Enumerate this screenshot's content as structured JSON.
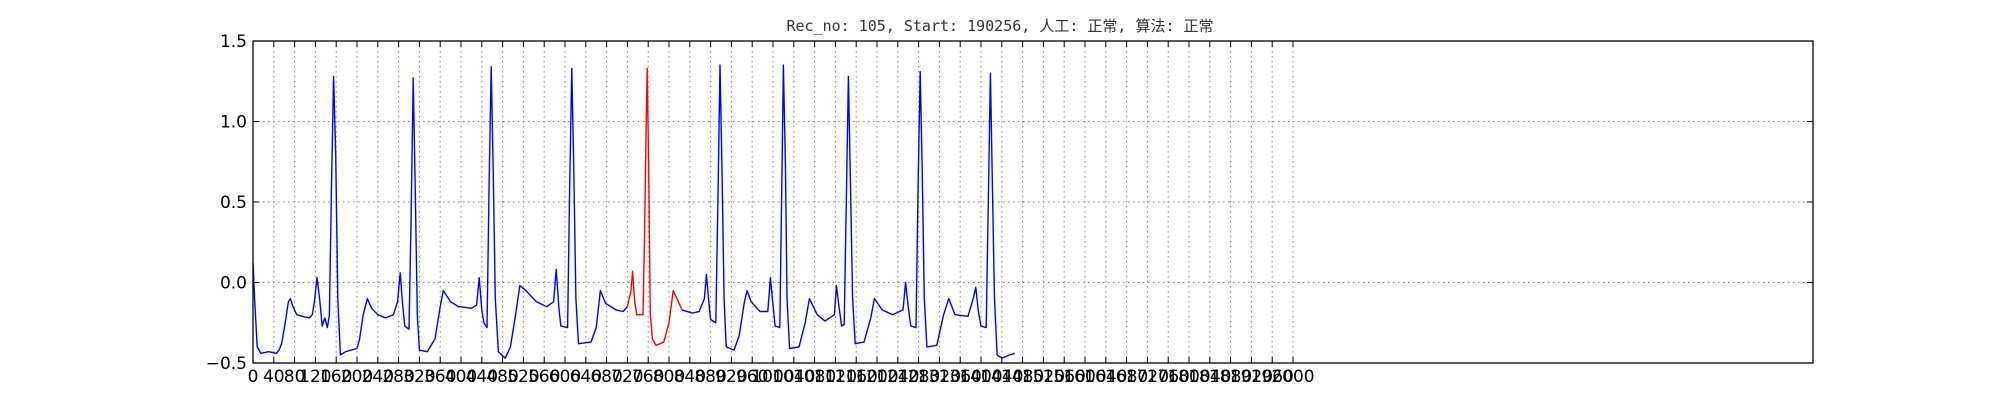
{
  "chart_data": {
    "type": "line",
    "title": "Rec_no: 105, Start: 190256, 人工: 正常, 算法: 正常",
    "xlabel": "",
    "ylabel": "",
    "xlim": [
      0,
      3000
    ],
    "ylim": [
      -0.5,
      1.5
    ],
    "yticks": [
      -0.5,
      0.0,
      0.5,
      1.0,
      1.5
    ],
    "ytick_labels": [
      "−0.5",
      "0.0",
      "0.5",
      "1.0",
      "1.5"
    ],
    "xtick_step": 40,
    "xtick_max": 2000,
    "grid": true,
    "colors": {
      "normal": "#0000ff",
      "highlight": "#ff0000",
      "axis": "#000000",
      "grid": "#888888"
    },
    "series": [
      {
        "color": "#0000ff",
        "values": [
          [
            0,
            0.12
          ],
          [
            3,
            -0.1
          ],
          [
            8,
            -0.4
          ],
          [
            15,
            -0.44
          ],
          [
            30,
            -0.43
          ],
          [
            45,
            -0.44
          ],
          [
            50,
            -0.42
          ],
          [
            55,
            -0.38
          ],
          [
            62,
            -0.25
          ],
          [
            68,
            -0.12
          ],
          [
            72,
            -0.1
          ],
          [
            77,
            -0.15
          ],
          [
            84,
            -0.2
          ],
          [
            95,
            -0.21
          ],
          [
            108,
            -0.22
          ],
          [
            114,
            -0.2
          ],
          [
            118,
            -0.12
          ],
          [
            123,
            0.03
          ],
          [
            128,
            -0.1
          ],
          [
            133,
            -0.27
          ],
          [
            138,
            -0.22
          ],
          [
            143,
            -0.28
          ],
          [
            147,
            -0.2
          ],
          [
            151,
            0.6
          ],
          [
            155,
            1.28
          ],
          [
            159,
            0.8
          ],
          [
            163,
            -0.1
          ],
          [
            168,
            -0.45
          ],
          [
            178,
            -0.43
          ],
          [
            200,
            -0.41
          ],
          [
            205,
            -0.35
          ],
          [
            212,
            -0.2
          ],
          [
            220,
            -0.1
          ],
          [
            228,
            -0.16
          ],
          [
            240,
            -0.2
          ],
          [
            255,
            -0.22
          ],
          [
            270,
            -0.2
          ],
          [
            278,
            -0.12
          ],
          [
            283,
            0.06
          ],
          [
            288,
            -0.15
          ],
          [
            292,
            -0.27
          ],
          [
            300,
            -0.29
          ],
          [
            304,
            0.4
          ],
          [
            308,
            1.27
          ],
          [
            312,
            0.6
          ],
          [
            316,
            -0.2
          ],
          [
            320,
            -0.42
          ],
          [
            335,
            -0.43
          ],
          [
            350,
            -0.35
          ],
          [
            360,
            -0.15
          ],
          [
            366,
            -0.05
          ],
          [
            380,
            -0.12
          ],
          [
            395,
            -0.15
          ],
          [
            420,
            -0.16
          ],
          [
            430,
            -0.14
          ],
          [
            435,
            0.03
          ],
          [
            440,
            -0.17
          ],
          [
            444,
            -0.25
          ],
          [
            450,
            -0.28
          ],
          [
            454,
            0.6
          ],
          [
            458,
            1.34
          ],
          [
            462,
            0.7
          ],
          [
            466,
            -0.1
          ],
          [
            472,
            -0.43
          ],
          [
            485,
            -0.47
          ],
          [
            495,
            -0.4
          ],
          [
            505,
            -0.2
          ],
          [
            513,
            -0.02
          ],
          [
            525,
            -0.05
          ],
          [
            545,
            -0.12
          ],
          [
            565,
            -0.15
          ],
          [
            578,
            -0.12
          ],
          [
            583,
            0.08
          ],
          [
            588,
            -0.15
          ],
          [
            592,
            -0.27
          ],
          [
            605,
            -0.28
          ],
          [
            609,
            0.6
          ],
          [
            613,
            1.33
          ],
          [
            617,
            0.7
          ],
          [
            621,
            -0.1
          ],
          [
            626,
            -0.38
          ],
          [
            650,
            -0.37
          ],
          [
            660,
            -0.28
          ],
          [
            668,
            -0.05
          ],
          [
            678,
            -0.13
          ],
          [
            698,
            -0.17
          ],
          [
            712,
            -0.18
          ],
          [
            720,
            -0.15
          ]
        ]
      },
      {
        "color": "#ff0000",
        "values": [
          [
            720,
            -0.15
          ],
          [
            727,
            -0.05
          ],
          [
            730,
            0.07
          ],
          [
            734,
            -0.12
          ],
          [
            738,
            -0.2
          ],
          [
            750,
            -0.2
          ],
          [
            753,
            0.3
          ],
          [
            756,
            0.95
          ],
          [
            758,
            1.33
          ],
          [
            761,
            0.7
          ],
          [
            764,
            -0.2
          ],
          [
            768,
            -0.35
          ],
          [
            775,
            -0.39
          ],
          [
            790,
            -0.37
          ],
          [
            800,
            -0.25
          ],
          [
            808,
            -0.05
          ],
          [
            818,
            -0.12
          ],
          [
            825,
            -0.17
          ]
        ]
      },
      {
        "color": "#0000ff",
        "values": [
          [
            825,
            -0.17
          ],
          [
            845,
            -0.19
          ],
          [
            858,
            -0.18
          ],
          [
            868,
            -0.1
          ],
          [
            872,
            0.05
          ],
          [
            876,
            -0.1
          ],
          [
            880,
            -0.23
          ],
          [
            890,
            -0.25
          ],
          [
            894,
            0.5
          ],
          [
            898,
            1.35
          ],
          [
            902,
            0.7
          ],
          [
            906,
            -0.1
          ],
          [
            910,
            -0.4
          ],
          [
            925,
            -0.42
          ],
          [
            935,
            -0.33
          ],
          [
            945,
            -0.12
          ],
          [
            950,
            -0.05
          ],
          [
            958,
            -0.12
          ],
          [
            975,
            -0.18
          ],
          [
            990,
            -0.18
          ],
          [
            995,
            0.03
          ],
          [
            1000,
            -0.14
          ],
          [
            1004,
            -0.27
          ],
          [
            1013,
            -0.28
          ],
          [
            1017,
            0.6
          ],
          [
            1020,
            1.35
          ],
          [
            1024,
            0.7
          ],
          [
            1027,
            -0.1
          ],
          [
            1032,
            -0.41
          ],
          [
            1050,
            -0.4
          ],
          [
            1062,
            -0.25
          ],
          [
            1070,
            -0.1
          ],
          [
            1085,
            -0.2
          ],
          [
            1100,
            -0.24
          ],
          [
            1118,
            -0.2
          ],
          [
            1122,
            -0.02
          ],
          [
            1127,
            -0.15
          ],
          [
            1132,
            -0.27
          ],
          [
            1137,
            -0.26
          ],
          [
            1141,
            0.5
          ],
          [
            1145,
            1.28
          ],
          [
            1149,
            0.6
          ],
          [
            1153,
            -0.1
          ],
          [
            1158,
            -0.38
          ],
          [
            1175,
            -0.37
          ],
          [
            1188,
            -0.22
          ],
          [
            1195,
            -0.1
          ],
          [
            1210,
            -0.17
          ],
          [
            1230,
            -0.2
          ],
          [
            1250,
            -0.17
          ],
          [
            1255,
            0.0
          ],
          [
            1260,
            -0.15
          ],
          [
            1265,
            -0.27
          ],
          [
            1275,
            -0.28
          ],
          [
            1279,
            0.6
          ],
          [
            1283,
            1.31
          ],
          [
            1287,
            0.7
          ],
          [
            1291,
            -0.1
          ],
          [
            1296,
            -0.4
          ],
          [
            1315,
            -0.39
          ],
          [
            1328,
            -0.2
          ],
          [
            1338,
            -0.1
          ],
          [
            1350,
            -0.2
          ],
          [
            1375,
            -0.21
          ],
          [
            1385,
            -0.1
          ],
          [
            1390,
            -0.03
          ],
          [
            1395,
            -0.18
          ],
          [
            1400,
            -0.27
          ],
          [
            1410,
            -0.28
          ],
          [
            1414,
            0.5
          ],
          [
            1418,
            1.3
          ],
          [
            1422,
            0.6
          ],
          [
            1426,
            -0.1
          ],
          [
            1431,
            -0.45
          ],
          [
            1440,
            -0.47
          ],
          [
            1455,
            -0.45
          ],
          [
            1465,
            -0.44
          ]
        ]
      }
    ]
  }
}
